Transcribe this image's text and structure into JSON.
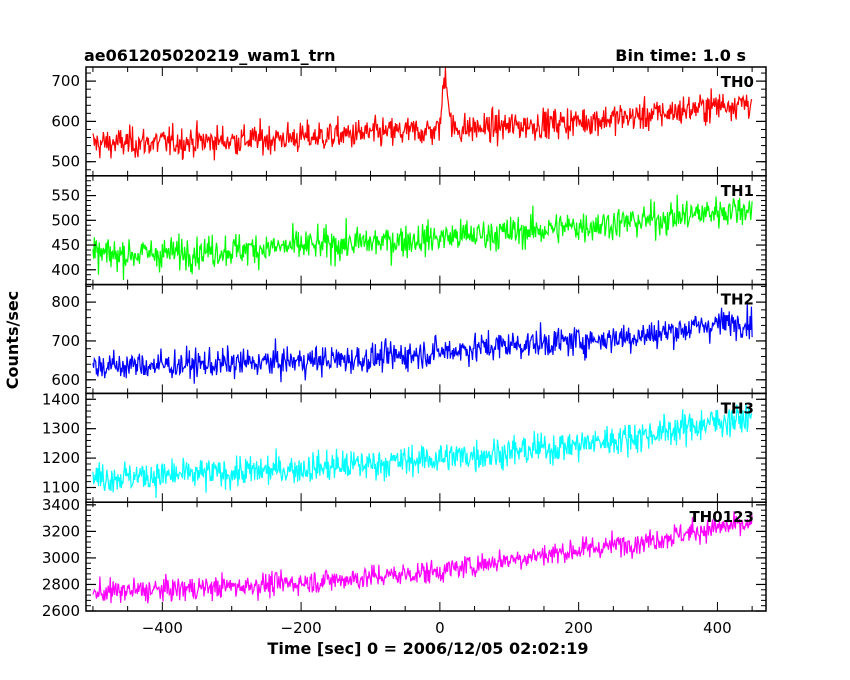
{
  "chart_data": {
    "type": "line",
    "title": "ae061205020219_wam1_trn",
    "bin_label": "Bin time: 1.0 s",
    "xlabel": "Time [sec] 0 = 2006/12/05 02:02:19",
    "ylabel": "Counts/sec",
    "xlim": [
      -510,
      470
    ],
    "x_range": [
      -500,
      450
    ],
    "xticks": [
      -400,
      -200,
      0,
      200,
      400
    ],
    "panels": [
      {
        "name": "TH0",
        "color": "#ff0000",
        "ylim": [
          465,
          735
        ],
        "yticks": [
          500,
          600,
          700
        ],
        "trend": [
          [
            -500,
            545
          ],
          [
            -400,
            548
          ],
          [
            -300,
            553
          ],
          [
            -200,
            560
          ],
          [
            -100,
            570
          ],
          [
            0,
            578
          ],
          [
            100,
            588
          ],
          [
            200,
            600
          ],
          [
            300,
            615
          ],
          [
            400,
            640
          ],
          [
            450,
            648
          ]
        ],
        "noise": 32,
        "spike": {
          "x": 8,
          "peak": 720
        }
      },
      {
        "name": "TH1",
        "color": "#00ff00",
        "ylim": [
          370,
          590
        ],
        "yticks": [
          400,
          450,
          500,
          550
        ],
        "trend": [
          [
            -500,
            430
          ],
          [
            -400,
            433
          ],
          [
            -300,
            440
          ],
          [
            -200,
            448
          ],
          [
            -100,
            455
          ],
          [
            0,
            465
          ],
          [
            100,
            475
          ],
          [
            200,
            488
          ],
          [
            300,
            500
          ],
          [
            400,
            518
          ],
          [
            450,
            525
          ]
        ],
        "noise": 28
      },
      {
        "name": "TH2",
        "color": "#0000ff",
        "ylim": [
          565,
          845
        ],
        "yticks": [
          600,
          700,
          800
        ],
        "trend": [
          [
            -500,
            635
          ],
          [
            -400,
            638
          ],
          [
            -300,
            642
          ],
          [
            -200,
            648
          ],
          [
            -100,
            655
          ],
          [
            0,
            672
          ],
          [
            100,
            690
          ],
          [
            200,
            700
          ],
          [
            300,
            715
          ],
          [
            400,
            745
          ],
          [
            450,
            750
          ]
        ],
        "noise": 32
      },
      {
        "name": "TH3",
        "color": "#00ffff",
        "ylim": [
          1050,
          1420
        ],
        "yticks": [
          1100,
          1200,
          1300,
          1400
        ],
        "trend": [
          [
            -500,
            1135
          ],
          [
            -400,
            1140
          ],
          [
            -300,
            1150
          ],
          [
            -200,
            1165
          ],
          [
            -100,
            1180
          ],
          [
            0,
            1200
          ],
          [
            100,
            1220
          ],
          [
            200,
            1245
          ],
          [
            300,
            1280
          ],
          [
            400,
            1325
          ],
          [
            450,
            1335
          ]
        ],
        "noise": 45
      },
      {
        "name": "TH0123",
        "color": "#ff00ff",
        "ylim": [
          2600,
          3420
        ],
        "yticks": [
          2600,
          2800,
          3000,
          3200,
          3400
        ],
        "trend": [
          [
            -500,
            2740
          ],
          [
            -400,
            2760
          ],
          [
            -300,
            2785
          ],
          [
            -200,
            2815
          ],
          [
            -100,
            2855
          ],
          [
            0,
            2900
          ],
          [
            100,
            2990
          ],
          [
            200,
            3060
          ],
          [
            300,
            3130
          ],
          [
            400,
            3230
          ],
          [
            450,
            3250
          ]
        ],
        "noise": 75
      }
    ]
  }
}
